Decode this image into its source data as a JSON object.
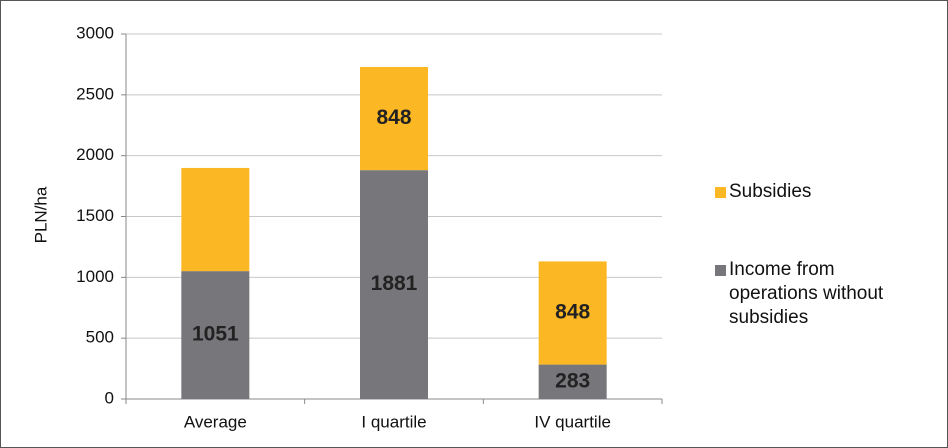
{
  "chart_data": {
    "type": "stacked-bar",
    "y_label": "PLN/ha",
    "categories": [
      "Average",
      "I quartile",
      "IV quartile"
    ],
    "series": [
      {
        "name": "Income from operations without subsidies",
        "color": "#77777b",
        "values": [
          1051,
          1881,
          283
        ]
      },
      {
        "name": "Subsidies",
        "color": "#fbb724",
        "values": [
          848,
          848,
          848
        ],
        "value_labels": [
          null,
          "848",
          "848"
        ]
      }
    ],
    "ylim": [
      0,
      3000
    ],
    "yticks": [
      0,
      500,
      1000,
      1500,
      2000,
      2500,
      3000
    ],
    "grid": true,
    "legend": "right"
  }
}
